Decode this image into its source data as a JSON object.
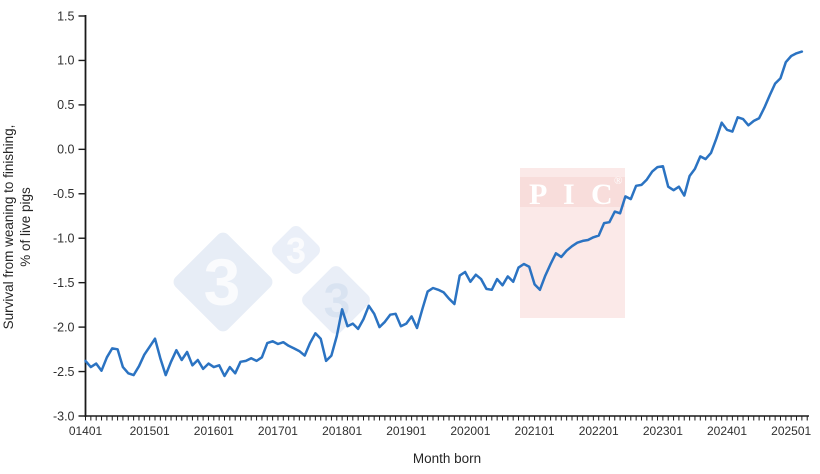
{
  "chart_data": {
    "type": "line",
    "title": "",
    "xlabel": "Month born",
    "ylabel_line1": "Survival from weaning to finishing,",
    "ylabel_line2": "% of live pigs",
    "ylim": [
      -3.0,
      1.5
    ],
    "y_tick_step": 0.5,
    "y_tick_labels": [
      "1.5",
      "1.0",
      "0.5",
      "0.0",
      "-0.5",
      "-1.0",
      "-1.5",
      "-2.0",
      "-2.5",
      "-3.0"
    ],
    "x_tick_labels": [
      "01401",
      "201501",
      "201601",
      "201701",
      "201801",
      "201901",
      "202001",
      "202101",
      "202201",
      "202301",
      "202401",
      "202501"
    ],
    "x_minor_tick": "monthly",
    "x_range_months": "2014-01 to 2025-03",
    "grid": "off",
    "legend": "none",
    "line_color": "#2B73C2",
    "axis_color": "#1a1a1a",
    "label_color": "#303030",
    "series": [
      {
        "name": "Survival from weaning to finishing, % of live pigs",
        "start_month": "201401",
        "interval": "1 month",
        "values": [
          -2.38,
          -2.45,
          -2.41,
          -2.49,
          -2.34,
          -2.24,
          -2.25,
          -2.45,
          -2.52,
          -2.54,
          -2.44,
          -2.31,
          -2.22,
          -2.13,
          -2.35,
          -2.54,
          -2.39,
          -2.26,
          -2.37,
          -2.28,
          -2.43,
          -2.37,
          -2.47,
          -2.41,
          -2.45,
          -2.43,
          -2.55,
          -2.45,
          -2.52,
          -2.39,
          -2.38,
          -2.35,
          -2.38,
          -2.34,
          -2.18,
          -2.16,
          -2.19,
          -2.17,
          -2.21,
          -2.24,
          -2.27,
          -2.32,
          -2.18,
          -2.07,
          -2.13,
          -2.38,
          -2.32,
          -2.1,
          -1.8,
          -1.99,
          -1.96,
          -2.02,
          -1.91,
          -1.76,
          -1.85,
          -2.0,
          -1.94,
          -1.86,
          -1.85,
          -1.99,
          -1.96,
          -1.88,
          -2.01,
          -1.8,
          -1.6,
          -1.56,
          -1.58,
          -1.61,
          -1.68,
          -1.74,
          -1.42,
          -1.38,
          -1.49,
          -1.41,
          -1.46,
          -1.57,
          -1.58,
          -1.46,
          -1.53,
          -1.43,
          -1.49,
          -1.33,
          -1.29,
          -1.32,
          -1.52,
          -1.58,
          -1.42,
          -1.29,
          -1.17,
          -1.21,
          -1.14,
          -1.09,
          -1.05,
          -1.03,
          -1.02,
          -0.99,
          -0.97,
          -0.83,
          -0.82,
          -0.7,
          -0.72,
          -0.53,
          -0.56,
          -0.41,
          -0.4,
          -0.34,
          -0.25,
          -0.2,
          -0.19,
          -0.42,
          -0.46,
          -0.42,
          -0.52,
          -0.3,
          -0.22,
          -0.08,
          -0.11,
          -0.04,
          0.12,
          0.3,
          0.22,
          0.2,
          0.36,
          0.34,
          0.27,
          0.32,
          0.35,
          0.47,
          0.61,
          0.74,
          0.8,
          0.98,
          1.05,
          1.08,
          1.1
        ]
      }
    ]
  },
  "watermarks": {
    "pig333_logo": {
      "threes": [
        "3",
        "3",
        "3"
      ],
      "diamond_color": "#E7EDF6",
      "diamond_color_small": "#EAEFF8",
      "diamond_color_medium": "#E9EEF7",
      "three_color_light": "#FAFBFD",
      "three_color_blue": "#D9E3F1"
    },
    "pic_logo": {
      "text": "PIC",
      "registered_mark": "®",
      "bg_color": "#FBE9E8",
      "band_color": "#F8DDDB",
      "text_color": "#FFFFFF"
    }
  }
}
